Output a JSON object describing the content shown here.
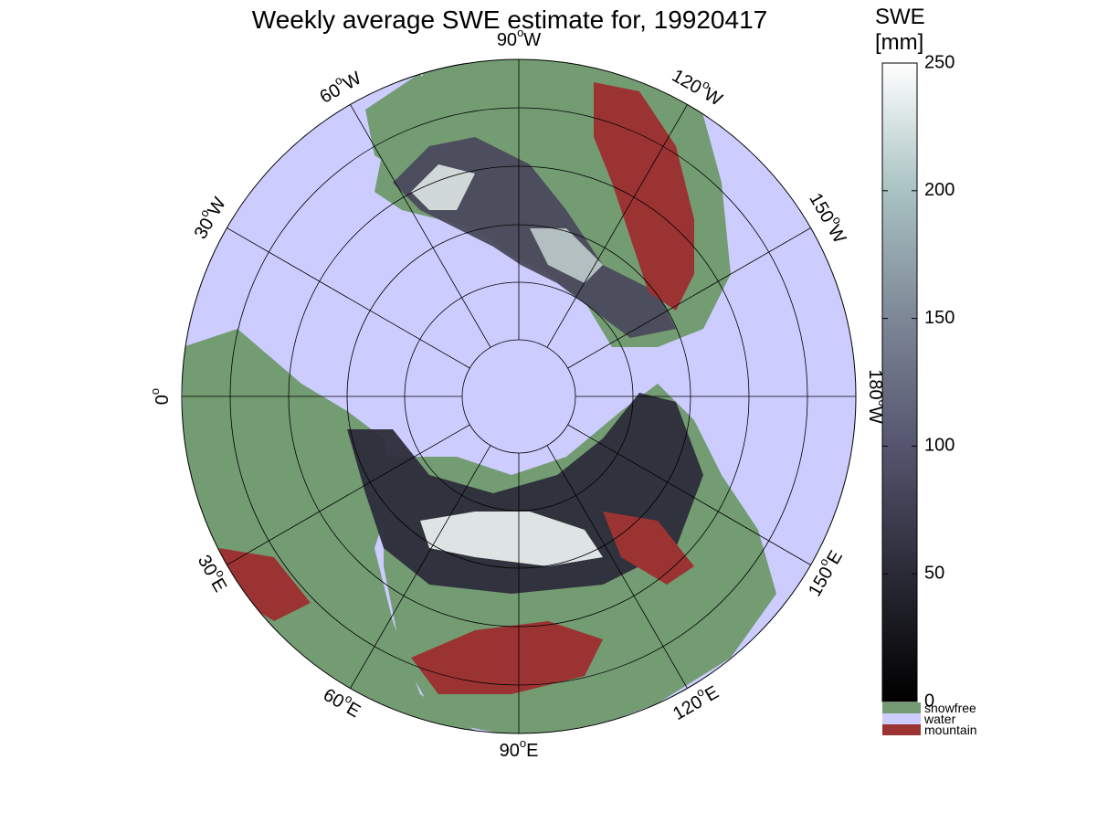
{
  "map": {
    "title": "Weekly average SWE estimate for, 19920417",
    "projection": "north-polar-stereographic",
    "longitude_labels": [
      {
        "lon": 0,
        "text": "0",
        "deg": "o"
      },
      {
        "lon": 30,
        "text": "30",
        "deg": "o",
        "suffix": "E"
      },
      {
        "lon": 60,
        "text": "60",
        "deg": "o",
        "suffix": "E"
      },
      {
        "lon": 90,
        "text": "90",
        "deg": "o",
        "suffix": "E"
      },
      {
        "lon": 120,
        "text": "120",
        "deg": "o",
        "suffix": "E"
      },
      {
        "lon": 150,
        "text": "150",
        "deg": "o",
        "suffix": "E"
      },
      {
        "lon": 180,
        "text": "180",
        "deg": "o",
        "suffix": "W"
      },
      {
        "lon": -150,
        "text": "150",
        "deg": "o",
        "suffix": "W"
      },
      {
        "lon": -120,
        "text": "120",
        "deg": "o",
        "suffix": "W"
      },
      {
        "lon": -90,
        "text": "90",
        "deg": "o",
        "suffix": "W"
      },
      {
        "lon": -60,
        "text": "60",
        "deg": "o",
        "suffix": "W"
      },
      {
        "lon": -30,
        "text": "30",
        "deg": "o",
        "suffix": "W"
      }
    ],
    "colors": {
      "water": "#ccccff",
      "snowfree": "#739c73",
      "mountain": "#9c3333",
      "grid": "#000000"
    }
  },
  "colorbar": {
    "title_line1": "SWE",
    "title_line2": "[mm]",
    "min": 0,
    "max": 250,
    "ticks": [
      0,
      50,
      100,
      150,
      200,
      250
    ],
    "tick_labels": [
      "0",
      "50",
      "100",
      "150",
      "200",
      "250"
    ],
    "gradient_colors": [
      "#000000",
      "#2a2a36",
      "#55556f",
      "#7d8796",
      "#a9c2c2",
      "#ffffff"
    ]
  },
  "legend": {
    "items": [
      {
        "label": "snowfree",
        "color": "#739c73"
      },
      {
        "label": "water",
        "color": "#ccccff"
      },
      {
        "label": "mountain",
        "color": "#9c3333"
      }
    ]
  }
}
